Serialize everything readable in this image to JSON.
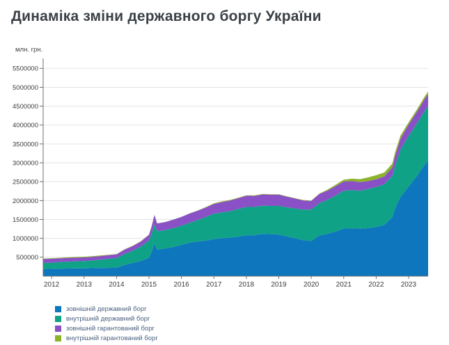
{
  "page": {
    "title": "Динаміка зміни державного боргу України"
  },
  "chart_data": {
    "type": "area",
    "stacked": true,
    "title": "Динаміка зміни державного боргу України",
    "ylabel": "млн. грн.",
    "xlabel": "",
    "grid": true,
    "legend_position": "bottom-left",
    "ylim": [
      0,
      5764000
    ],
    "xlim": [
      2011.74,
      2023.6
    ],
    "y_tick_values": [
      500000,
      1000000,
      1500000,
      2000000,
      2500000,
      3000000,
      3500000,
      4000000,
      4500000,
      5000000,
      5500000
    ],
    "x_tick_labels": [
      "2012",
      "2013",
      "2014",
      "2015",
      "2016",
      "2017",
      "2018",
      "2019",
      "2020",
      "2021",
      "2022",
      "2023"
    ],
    "x": [
      2011.75,
      2012.0,
      2012.25,
      2012.5,
      2012.75,
      2013.0,
      2013.25,
      2013.5,
      2013.75,
      2014.0,
      2014.25,
      2014.5,
      2014.75,
      2015.0,
      2015.08,
      2015.17,
      2015.25,
      2015.5,
      2015.75,
      2016.0,
      2016.25,
      2016.5,
      2016.75,
      2017.0,
      2017.25,
      2017.5,
      2017.75,
      2018.0,
      2018.25,
      2018.5,
      2018.75,
      2019.0,
      2019.25,
      2019.5,
      2019.75,
      2020.0,
      2020.25,
      2020.5,
      2020.75,
      2021.0,
      2021.25,
      2021.5,
      2021.75,
      2022.0,
      2022.25,
      2022.5,
      2022.58,
      2022.75,
      2023.0,
      2023.25,
      2023.5,
      2023.6
    ],
    "series": [
      {
        "id": "external-state-debt",
        "name": "зовнішній державний борг",
        "color": "#0d76bd",
        "values": [
          190000,
          196000,
          199000,
          203000,
          206000,
          209000,
          212000,
          215000,
          219000,
          223000,
          295000,
          350000,
          400000,
          486000,
          640000,
          870000,
          700000,
          731000,
          770000,
          826000,
          885000,
          915000,
          940000,
          980000,
          1003000,
          1021000,
          1045000,
          1080000,
          1083000,
          1118000,
          1112000,
          1099000,
          1051000,
          1001000,
          952000,
          932000,
          1076000,
          1120000,
          1180000,
          1259000,
          1267000,
          1258000,
          1270000,
          1300000,
          1355000,
          1560000,
          1790000,
          2100000,
          2371000,
          2650000,
          2950000,
          3050000
        ]
      },
      {
        "id": "domestic-state-debt",
        "name": "внутрішній державний борг",
        "color": "#10a287",
        "values": [
          160000,
          161000,
          173000,
          181000,
          187000,
          190000,
          202000,
          221000,
          239000,
          257000,
          294000,
          325000,
          385000,
          461000,
          480000,
          500000,
          490000,
          488000,
          500000,
          508000,
          528000,
          570000,
          625000,
          671000,
          687000,
          701000,
          730000,
          753000,
          749000,
          745000,
          748000,
          761000,
          772000,
          792000,
          810000,
          830000,
          857000,
          900000,
          956000,
          1001000,
          1011000,
          1002000,
          1035000,
          1063000,
          1080000,
          1100000,
          1130000,
          1260000,
          1343000,
          1390000,
          1440000,
          1455000
        ]
      },
      {
        "id": "external-guaranteed-debt",
        "name": "зовнішній гарантований борг",
        "color": "#8a51c6",
        "values": [
          104000,
          104000,
          100000,
          99000,
          98000,
          98000,
          97000,
          96000,
          96000,
          96000,
          114000,
          123000,
          132000,
          146000,
          190000,
          250000,
          205000,
          212000,
          225000,
          234000,
          245000,
          248000,
          252000,
          260000,
          272000,
          280000,
          287000,
          295000,
          294000,
          300000,
          298000,
          298000,
          281000,
          262000,
          244000,
          228000,
          243000,
          245000,
          247000,
          245000,
          240000,
          228000,
          215000,
          203000,
          205000,
          225000,
          255000,
          280000,
          303000,
          305000,
          308000,
          310000
        ]
      },
      {
        "id": "domestic-guaranteed-debt",
        "name": "внутрішній гарантований борг",
        "color": "#8db32b",
        "values": [
          12000,
          12000,
          15000,
          16000,
          17000,
          19000,
          17000,
          15000,
          12000,
          8000,
          8000,
          8000,
          8000,
          8000,
          6000,
          5000,
          5000,
          4000,
          4000,
          3000,
          3000,
          5000,
          10000,
          19000,
          17000,
          16000,
          15000,
          13000,
          12000,
          11000,
          11000,
          10000,
          10000,
          10000,
          10000,
          9000,
          12000,
          25000,
          37000,
          48000,
          62000,
          79000,
          95000,
          106000,
          103000,
          99000,
          95000,
          85000,
          55000,
          60000,
          65000,
          68000
        ]
      }
    ],
    "colors": {
      "grid": "#e3e3e3",
      "axis": "#6e6e6e",
      "tick_label": "#3c3c3c"
    }
  }
}
